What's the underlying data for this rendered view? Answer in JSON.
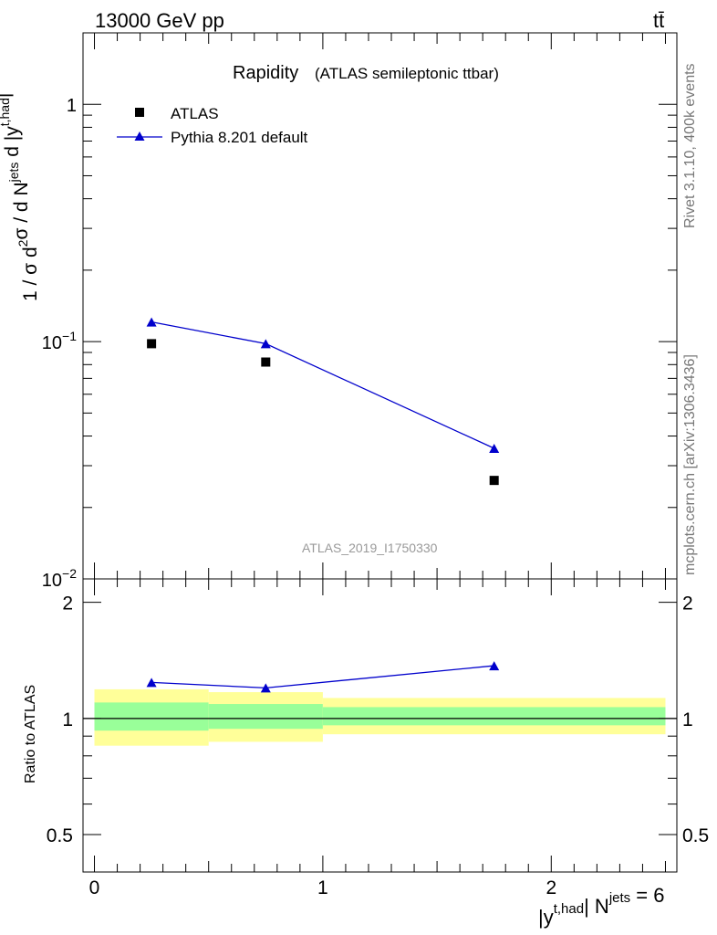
{
  "header": {
    "energy_label": "13000 GeV pp",
    "process_label": "tt̄"
  },
  "side_labels": {
    "rivet": "Rivet 3.1.10,  400k events",
    "mcplots": "mcplots.cern.ch [arXiv:1306.3436]"
  },
  "colors": {
    "pythia": "#0000cc",
    "band_inner": "#99ff99",
    "band_outer": "#ffff99",
    "watermark": "#999999"
  },
  "chart_data": [
    {
      "type": "scatter",
      "title": "Rapidity",
      "subtitle": "(ATLAS semileptonic ttbar)",
      "analysis_label": "ATLAS_2019_I1750330",
      "ylabel": "1 / σ d²σ / d Nʲᵉᵗˢ d |yᵗ'ʰᵃᵈ|",
      "xlabel_parts": {
        "main": "|y",
        "sup1": "t,had",
        "mid": "| N",
        "sup2": "jets",
        "end": " = 6"
      },
      "yscale": "log",
      "ylim": [
        0.01,
        2
      ],
      "xlim": [
        -0.05,
        2.55
      ],
      "yticks": [
        {
          "value": 1,
          "label_main": "1",
          "label_exp": ""
        },
        {
          "value": 0.1,
          "label_main": "10",
          "label_exp": "−1"
        },
        {
          "value": 0.01,
          "label_main": "10",
          "label_exp": "−2"
        }
      ],
      "legend_position": "top-left",
      "series": [
        {
          "name": "ATLAS",
          "marker": "square",
          "x": [
            0.25,
            0.75,
            1.75
          ],
          "y": [
            0.098,
            0.082,
            0.026
          ]
        },
        {
          "name": "Pythia 8.201 default",
          "marker": "triangle",
          "x": [
            0.25,
            0.75,
            1.75
          ],
          "y": [
            0.121,
            0.098,
            0.0355
          ]
        }
      ]
    },
    {
      "type": "line",
      "ylabel": "Ratio to ATLAS",
      "ylim": [
        0.4,
        2.3
      ],
      "yscale": "log",
      "yticks": [
        {
          "value": 2,
          "label": "2"
        },
        {
          "value": 1,
          "label": "1"
        },
        {
          "value": 0.5,
          "label": "0.5"
        }
      ],
      "xticks": [
        {
          "value": 0,
          "label": "0"
        },
        {
          "value": 1,
          "label": "1"
        },
        {
          "value": 2,
          "label": "2"
        }
      ],
      "bands": [
        {
          "x0": 0,
          "x1": 0.5,
          "inner": [
            0.93,
            1.1
          ],
          "outer": [
            0.85,
            1.19
          ]
        },
        {
          "x0": 0.5,
          "x1": 1.0,
          "inner": [
            0.94,
            1.09
          ],
          "outer": [
            0.87,
            1.17
          ]
        },
        {
          "x0": 1.0,
          "x1": 2.5,
          "inner": [
            0.96,
            1.07
          ],
          "outer": [
            0.91,
            1.13
          ]
        }
      ],
      "series": [
        {
          "name": "Pythia 8.201 default",
          "x": [
            0.25,
            0.75,
            1.75
          ],
          "y": [
            1.24,
            1.2,
            1.37
          ]
        }
      ]
    }
  ]
}
